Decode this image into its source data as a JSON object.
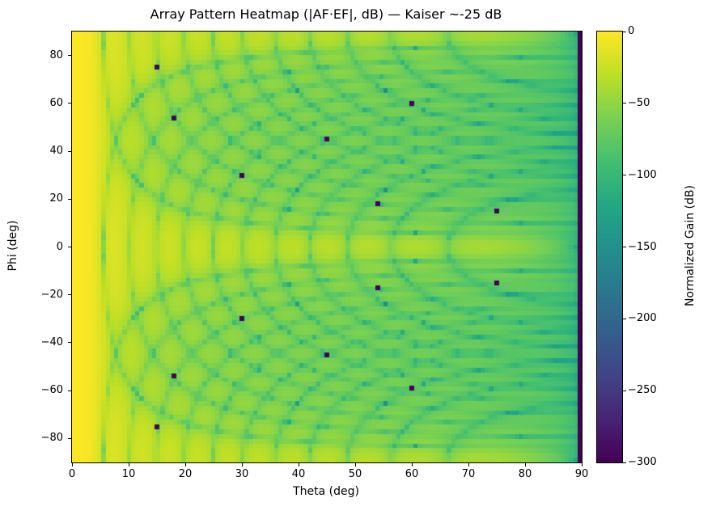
{
  "figure": {
    "background": "#ffffff",
    "title": "Array Pattern Heatmap (|AF·EF|, dB) — Kaiser ~-25 dB"
  },
  "chart_data": {
    "type": "heatmap",
    "title": "Array Pattern Heatmap (|AF·EF|, dB) — Kaiser ~-25 dB",
    "xlabel": "Theta (deg)",
    "ylabel": "Phi (deg)",
    "x_range": [
      0,
      90
    ],
    "y_range": [
      -90,
      90
    ],
    "x_ticks": [
      0,
      10,
      20,
      30,
      40,
      50,
      60,
      70,
      80,
      90
    ],
    "x_tick_labels": [
      "0",
      "10",
      "20",
      "30",
      "40",
      "50",
      "60",
      "70",
      "80",
      "90"
    ],
    "y_ticks": [
      -80,
      -60,
      -40,
      -20,
      0,
      20,
      40,
      60,
      80
    ],
    "y_tick_labels": [
      "−80",
      "−60",
      "−40",
      "−20",
      "0",
      "20",
      "40",
      "60",
      "80"
    ],
    "grid_shape": {
      "nx": 121,
      "ny": 91
    },
    "colorbar": {
      "label": "Normalized Gain (dB)",
      "vmin": -300,
      "vmax": 0,
      "ticks": [
        0,
        -50,
        -100,
        -150,
        -200,
        -250,
        -300
      ],
      "tick_labels": [
        "0",
        "−50",
        "−100",
        "−150",
        "−200",
        "−250",
        "−300"
      ],
      "colormap": "viridis"
    },
    "colormap_stops": [
      [
        0.0,
        "#440154"
      ],
      [
        0.1,
        "#482475"
      ],
      [
        0.2,
        "#414487"
      ],
      [
        0.3,
        "#355f8d"
      ],
      [
        0.4,
        "#2a788e"
      ],
      [
        0.5,
        "#21918c"
      ],
      [
        0.6,
        "#22a884"
      ],
      [
        0.7,
        "#44bf70"
      ],
      [
        0.8,
        "#7ad151"
      ],
      [
        0.9,
        "#bddf26"
      ],
      [
        1.0,
        "#fde725"
      ]
    ],
    "model": {
      "description": "Separable planar-array pattern in dB: 20*log10(|AF(u)|*|AF(v)|*cos(theta)), with u = sin(theta)*cos(phi), v = sin(theta)*sin(phi); Kaiser-tapered uniform linear factors, deep nulls clipped at floor.",
      "n_elements": 24,
      "element_spacing_wavelengths": 0.5,
      "window": "Kaiser",
      "kaiser_beta": 1.33,
      "sidelobe_level_db": -25,
      "element_factor": "cos(theta)",
      "floor_db": -300
    },
    "deep_null_points": [
      [
        15,
        75
      ],
      [
        18,
        54
      ],
      [
        30,
        30
      ],
      [
        45,
        45
      ],
      [
        54,
        18
      ],
      [
        60,
        60
      ],
      [
        75,
        15
      ],
      [
        15,
        -75
      ],
      [
        18,
        -54
      ],
      [
        30,
        -30
      ],
      [
        45,
        -45
      ],
      [
        54,
        -17
      ],
      [
        60,
        -59
      ],
      [
        75,
        -15
      ]
    ]
  }
}
